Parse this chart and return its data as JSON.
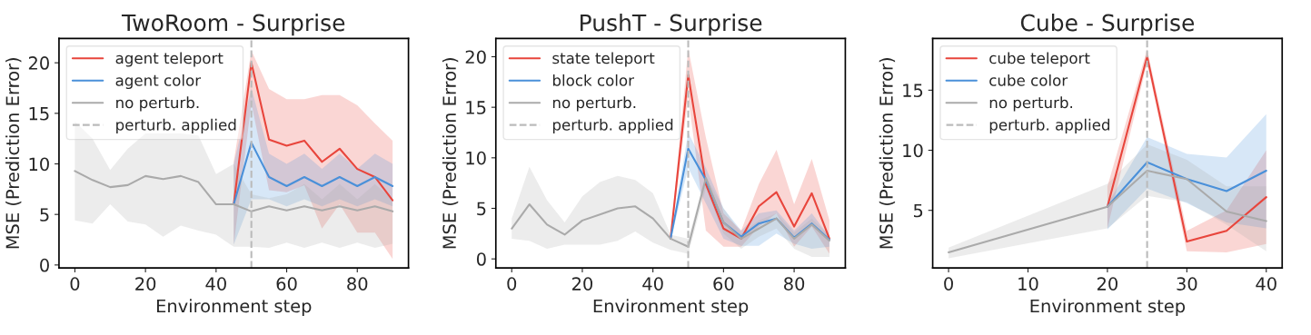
{
  "chart_data": [
    {
      "type": "line",
      "title": "TwoRoom - Surprise",
      "xlabel": "Environment step",
      "ylabel": "MSE (Prediction Error)",
      "xlim": [
        -4.5,
        94.5
      ],
      "ylim": [
        -0.3,
        22.4
      ],
      "xticks": [
        0,
        20,
        40,
        60,
        80
      ],
      "yticks": [
        0,
        5,
        10,
        15,
        20
      ],
      "grid": false,
      "legend": "top left",
      "line_style": "solid",
      "marker": "none",
      "series": [
        {
          "name": "agent teleport",
          "color": "#e8453c",
          "x": [
            45,
            50,
            55,
            60,
            65,
            70,
            75,
            80,
            85,
            90
          ],
          "values": [
            6.0,
            20.0,
            12.4,
            11.8,
            12.3,
            10.2,
            11.5,
            9.5,
            8.7,
            6.4
          ],
          "lower": [
            2.0,
            16.0,
            7.4,
            7.2,
            7.9,
            3.6,
            6.0,
            3.2,
            3.2,
            0.6
          ],
          "upper": [
            10.2,
            21.2,
            17.4,
            16.4,
            16.4,
            16.8,
            16.8,
            15.8,
            14.0,
            12.3
          ]
        },
        {
          "name": "agent color",
          "color": "#4a90d9",
          "x": [
            45,
            50,
            55,
            60,
            65,
            70,
            75,
            80,
            85,
            90
          ],
          "values": [
            6.0,
            12.1,
            8.7,
            7.8,
            8.7,
            7.8,
            8.7,
            7.8,
            8.7,
            7.8
          ],
          "lower": [
            2.0,
            6.5,
            6.5,
            5.8,
            6.5,
            5.8,
            6.5,
            5.8,
            6.5,
            5.8
          ],
          "upper": [
            10.0,
            17.5,
            11.0,
            10.0,
            11.0,
            9.5,
            11.0,
            9.5,
            11.0,
            10.0
          ]
        },
        {
          "name": "no perturb.",
          "color": "#aaaaaa",
          "x": [
            0,
            5,
            10,
            15,
            20,
            25,
            30,
            35,
            40,
            45,
            50,
            55,
            60,
            65,
            70,
            75,
            80,
            85,
            90
          ],
          "values": [
            9.3,
            8.4,
            7.7,
            7.9,
            8.8,
            8.5,
            8.8,
            8.2,
            6.0,
            6.0,
            5.3,
            5.8,
            5.4,
            5.8,
            5.4,
            5.8,
            5.4,
            5.8,
            5.3
          ],
          "lower": [
            4.4,
            4.1,
            6.0,
            4.3,
            4.0,
            2.8,
            3.9,
            3.4,
            3.0,
            1.8,
            1.8,
            1.7,
            2.2,
            1.7,
            2.2,
            1.7,
            2.2,
            1.7,
            2.1
          ],
          "upper": [
            14.2,
            12.5,
            9.4,
            11.5,
            13.0,
            13.0,
            13.0,
            12.8,
            9.0,
            10.0,
            7.0,
            6.6,
            7.0,
            8.0,
            6.5,
            8.0,
            6.5,
            8.0,
            6.5
          ]
        }
      ],
      "ref_lines": [
        {
          "axis": "x",
          "value": 50,
          "label": "perturb. applied",
          "color": "#bbbbbb",
          "line_style": "dashed"
        }
      ]
    },
    {
      "type": "line",
      "title": "PushT - Surprise",
      "xlabel": "Environment step",
      "ylabel": "MSE (Prediction Error)",
      "xlim": [
        -4.5,
        94.5
      ],
      "ylim": [
        -0.9,
        21.8
      ],
      "xticks": [
        0,
        20,
        40,
        60,
        80
      ],
      "yticks": [
        0,
        5,
        10,
        15,
        20
      ],
      "grid": false,
      "legend": "top left",
      "line_style": "solid",
      "marker": "none",
      "series": [
        {
          "name": "state teleport",
          "color": "#e8453c",
          "x": [
            45,
            50,
            55,
            60,
            65,
            70,
            75,
            80,
            85,
            90
          ],
          "values": [
            2.0,
            18.2,
            7.4,
            3.0,
            2.0,
            5.2,
            6.6,
            3.2,
            6.5,
            2.0
          ],
          "lower": [
            1.8,
            16.0,
            2.8,
            1.2,
            1.2,
            3.2,
            4.5,
            1.2,
            3.2,
            0.5
          ],
          "upper": [
            2.2,
            20.8,
            12.0,
            4.5,
            2.8,
            7.4,
            10.8,
            5.4,
            9.9,
            3.8
          ]
        },
        {
          "name": "block color",
          "color": "#4a90d9",
          "x": [
            45,
            50,
            55,
            60,
            65,
            70,
            75,
            80,
            85,
            90
          ],
          "values": [
            2.0,
            10.9,
            7.8,
            3.6,
            2.2,
            3.5,
            4.0,
            2.1,
            3.5,
            1.9
          ],
          "lower": [
            1.8,
            9.0,
            5.5,
            2.0,
            1.3,
            1.3,
            2.5,
            1.5,
            1.0,
            1.2
          ],
          "upper": [
            2.2,
            12.5,
            9.0,
            5.0,
            2.8,
            4.5,
            4.8,
            2.8,
            4.5,
            2.2
          ]
        },
        {
          "name": "no perturb.",
          "color": "#aaaaaa",
          "x": [
            0,
            5,
            10,
            15,
            20,
            25,
            30,
            35,
            40,
            45,
            50,
            55,
            60,
            65,
            70,
            75,
            80,
            85,
            90
          ],
          "values": [
            3.0,
            5.4,
            3.4,
            2.4,
            3.8,
            4.4,
            5.0,
            5.2,
            4.0,
            2.0,
            1.2,
            8.0,
            3.6,
            2.0,
            3.0,
            4.0,
            2.0,
            3.4,
            1.8
          ],
          "lower": [
            2.0,
            1.8,
            1.0,
            1.4,
            1.4,
            1.4,
            1.8,
            2.7,
            1.6,
            0.9,
            0.5,
            7.0,
            2.5,
            1.0,
            2.2,
            3.0,
            1.0,
            0.2,
            0.2
          ],
          "upper": [
            4.0,
            9.1,
            5.8,
            3.6,
            6.2,
            7.6,
            8.2,
            7.8,
            6.5,
            2.4,
            2.0,
            8.2,
            5.0,
            2.5,
            3.8,
            4.5,
            2.6,
            4.0,
            2.3
          ]
        }
      ],
      "ref_lines": [
        {
          "axis": "x",
          "value": 50,
          "label": "perturb. applied",
          "color": "#bbbbbb",
          "line_style": "dashed"
        }
      ]
    },
    {
      "type": "line",
      "title": "Cube - Surprise",
      "xlabel": "Environment step",
      "ylabel": "MSE (Prediction Error)",
      "xlim": [
        -2,
        42
      ],
      "ylim": [
        0.2,
        19.3
      ],
      "xticks": [
        0,
        10,
        20,
        30,
        40
      ],
      "yticks": [
        5,
        10,
        15
      ],
      "grid": false,
      "legend": "top left",
      "line_style": "solid",
      "marker": "none",
      "series": [
        {
          "name": "cube teleport",
          "color": "#e8453c",
          "x": [
            20,
            25,
            30,
            35,
            40
          ],
          "values": [
            5.3,
            17.8,
            2.4,
            3.3,
            6.1
          ],
          "lower": [
            3.5,
            17.3,
            1.6,
            1.5,
            2.2
          ],
          "upper": [
            7.0,
            18.4,
            3.3,
            5.0,
            10.0
          ]
        },
        {
          "name": "cube color",
          "color": "#4a90d9",
          "x": [
            20,
            25,
            30,
            35,
            40
          ],
          "values": [
            5.3,
            9.0,
            7.6,
            6.6,
            8.3
          ],
          "lower": [
            3.4,
            6.8,
            5.6,
            4.0,
            3.5
          ],
          "upper": [
            5.5,
            11.1,
            9.7,
            9.4,
            13.0
          ]
        },
        {
          "name": "no perturb.",
          "color": "#aaaaaa",
          "x": [
            0,
            20,
            25,
            30,
            35,
            40
          ],
          "values": [
            1.5,
            5.3,
            8.3,
            7.6,
            4.9,
            4.1
          ],
          "lower": [
            1.0,
            3.5,
            6.2,
            5.7,
            3.8,
            1.6
          ],
          "upper": [
            1.9,
            7.2,
            10.5,
            9.2,
            7.0,
            7.0
          ]
        }
      ],
      "ref_lines": [
        {
          "axis": "x",
          "value": 25,
          "label": "perturb. applied",
          "color": "#bbbbbb",
          "line_style": "dashed"
        }
      ]
    }
  ]
}
